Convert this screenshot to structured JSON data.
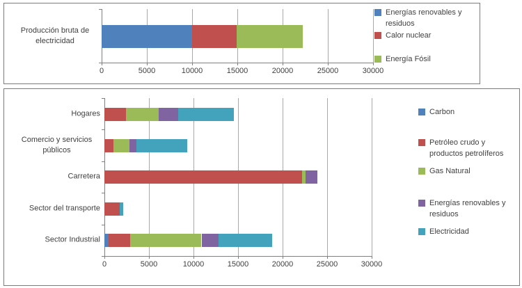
{
  "chart_data": [
    {
      "id": "produccion-bruta-electricidad",
      "type": "bar",
      "orientation": "horizontal",
      "stacked": true,
      "grid": true,
      "legend_position": "right",
      "categories": [
        "Producción bruta de electricidad"
      ],
      "series": [
        {
          "name": "Energías renovables y residuos",
          "color": "#4F81BD",
          "values": [
            10000
          ]
        },
        {
          "name": "Calor nuclear",
          "color": "#C0504D",
          "values": [
            4900
          ]
        },
        {
          "name": "Energía Fósil",
          "color": "#9BBB59",
          "values": [
            7300
          ]
        }
      ],
      "xlim": [
        0,
        30000
      ],
      "xticks": [
        0,
        5000,
        10000,
        15000,
        20000,
        25000,
        30000
      ],
      "tick_labels": [
        "0",
        "5000",
        "10000",
        "15000",
        "20000",
        "25000",
        "30000"
      ]
    },
    {
      "id": "consumo-energia-por-sector",
      "type": "bar",
      "orientation": "horizontal",
      "stacked": true,
      "grid": true,
      "legend_position": "right",
      "categories": [
        "Hogares",
        "Comercio y servicios públicos",
        "Carretera",
        "Sector del transporte",
        "Sector Industrial"
      ],
      "series": [
        {
          "name": "Carbon",
          "color": "#4F81BD",
          "values": [
            0,
            0,
            0,
            0,
            500
          ]
        },
        {
          "name": "Petróleo crudo y productos petrolíferos",
          "color": "#C0504D",
          "values": [
            2400,
            1000,
            22200,
            1700,
            2400
          ]
        },
        {
          "name": "Gas Natural",
          "color": "#9BBB59",
          "values": [
            3700,
            1800,
            400,
            0,
            8000
          ]
        },
        {
          "name": "Energías renovables y residuos",
          "color": "#8064A2",
          "values": [
            2200,
            800,
            1300,
            0,
            1900
          ]
        },
        {
          "name": "Electricidad",
          "color": "#43A2BC",
          "values": [
            6200,
            5700,
            0,
            400,
            6000
          ]
        }
      ],
      "xlim": [
        0,
        30000
      ],
      "xticks": [
        0,
        5000,
        10000,
        15000,
        20000,
        25000,
        30000
      ],
      "tick_labels": [
        "0",
        "5000",
        "10000",
        "15000",
        "20000",
        "25000",
        "30000"
      ]
    }
  ]
}
